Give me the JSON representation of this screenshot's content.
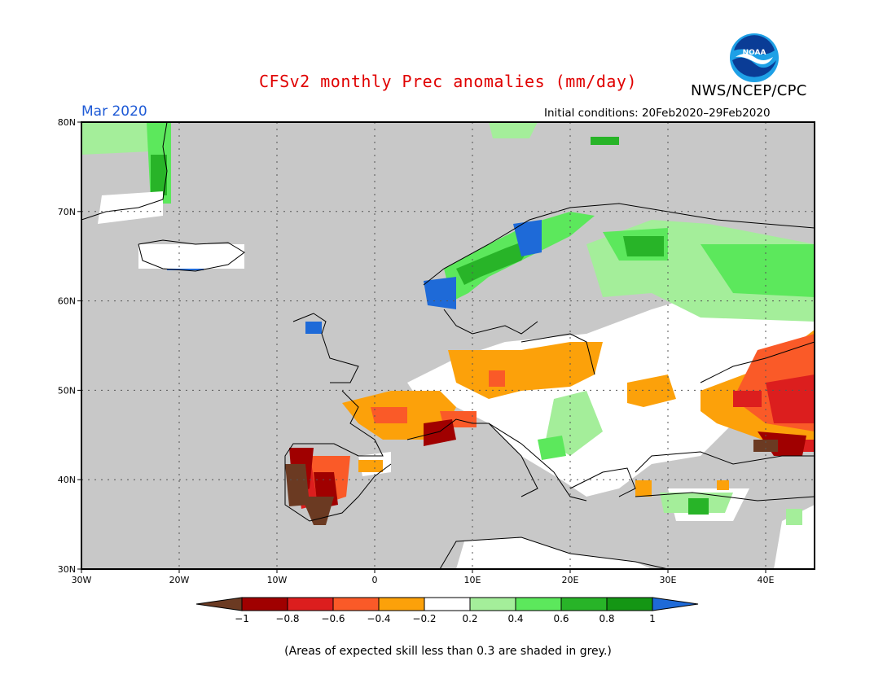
{
  "header": {
    "title": "CFSv2 monthly Prec anomalies (mm/day)",
    "agency": "NWS/NCEP/CPC",
    "logo_text": "NOAA",
    "month": "Mar 2020",
    "initial_conditions": "Initial conditions: 20Feb2020–29Feb2020"
  },
  "colors": {
    "title": "#e00000",
    "month": "#1e5ad6",
    "ocean_grey": "#c8c8c8",
    "land_white": "#ffffff"
  },
  "map": {
    "lat_labels": [
      "80N",
      "70N",
      "60N",
      "50N",
      "40N",
      "30N"
    ],
    "lon_labels": [
      "30W",
      "20W",
      "10W",
      "0",
      "10E",
      "20E",
      "30E",
      "40E"
    ]
  },
  "colorbar": {
    "bins": [
      {
        "color": "#6b3a22"
      },
      {
        "color": "#a00000"
      },
      {
        "color": "#dc1e1e"
      },
      {
        "color": "#fa5a28"
      },
      {
        "color": "#fca10a"
      },
      {
        "color": "#ffffff"
      },
      {
        "color": "#a4ee9a"
      },
      {
        "color": "#5ce85c"
      },
      {
        "color": "#28b428"
      },
      {
        "color": "#149614"
      },
      {
        "color": "#1e6ad8"
      }
    ],
    "labels": [
      "−1",
      "−0.8",
      "−0.6",
      "−0.4",
      "−0.2",
      "0.2",
      "0.4",
      "0.6",
      "0.8",
      "1"
    ]
  },
  "footnote": "(Areas of expected skill less than 0.3 are shaded in grey.)"
}
